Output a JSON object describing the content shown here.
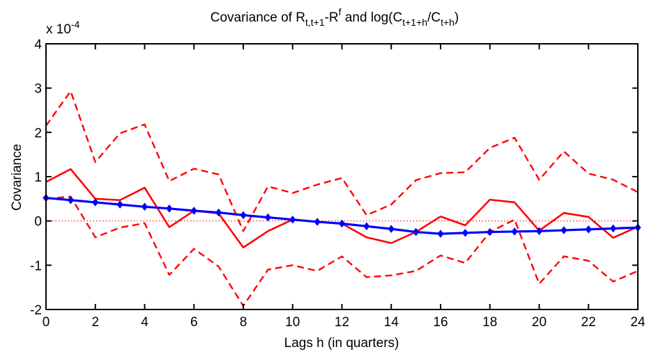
{
  "chart_data": {
    "type": "line",
    "title": {
      "prefix": "Covariance of R",
      "sub1": "t,t+1",
      "mid1": "-R",
      "sup1": "f",
      "mid2": " and log(C",
      "sub2": "t+1+h",
      "mid3": "/C",
      "sub3": "t+h",
      "suffix": ")"
    },
    "xlabel": "Lags h (in quarters)",
    "ylabel": "Covariance",
    "exponent": {
      "base": "x 10",
      "power": "-4"
    },
    "xlim": [
      0,
      24
    ],
    "ylim": [
      -2,
      4
    ],
    "xticks": [
      0,
      2,
      4,
      6,
      8,
      10,
      12,
      14,
      16,
      18,
      20,
      22,
      24
    ],
    "yticks": [
      -2,
      -1,
      0,
      1,
      2,
      3,
      4
    ],
    "x": [
      0,
      1,
      2,
      3,
      4,
      5,
      6,
      7,
      8,
      9,
      10,
      11,
      12,
      13,
      14,
      15,
      16,
      17,
      18,
      19,
      20,
      21,
      22,
      23,
      24
    ],
    "series": [
      {
        "style": "solid",
        "color": "#ff0000",
        "values": [
          0.88,
          1.17,
          0.5,
          0.47,
          0.75,
          -0.14,
          0.23,
          0.17,
          -0.6,
          -0.23,
          0.03,
          -0.02,
          -0.06,
          -0.37,
          -0.5,
          -0.25,
          0.1,
          -0.1,
          0.48,
          0.42,
          -0.22,
          0.18,
          0.09,
          -0.38,
          -0.13
        ]
      },
      {
        "style": "dashed",
        "color": "#ff0000",
        "values": [
          2.15,
          2.93,
          1.33,
          1.98,
          2.18,
          0.9,
          1.18,
          1.05,
          -0.23,
          0.78,
          0.63,
          0.82,
          0.97,
          0.13,
          0.37,
          0.92,
          1.08,
          1.1,
          1.65,
          1.88,
          0.93,
          1.57,
          1.07,
          0.93,
          0.65
        ]
      },
      {
        "style": "dashed",
        "color": "#ff0000",
        "values": [
          0.5,
          0.55,
          -0.37,
          -0.15,
          -0.05,
          -1.22,
          -0.63,
          -1.03,
          -1.92,
          -1.1,
          -1.0,
          -1.13,
          -0.8,
          -1.27,
          -1.23,
          -1.13,
          -0.78,
          -0.95,
          -0.25,
          0.03,
          -1.42,
          -0.8,
          -0.9,
          -1.37,
          -1.13
        ]
      },
      {
        "style": "solid-markers",
        "color": "#0000ff",
        "values": [
          0.52,
          0.47,
          0.42,
          0.37,
          0.32,
          0.28,
          0.23,
          0.19,
          0.13,
          0.08,
          0.03,
          -0.02,
          -0.06,
          -0.12,
          -0.18,
          -0.25,
          -0.29,
          -0.27,
          -0.25,
          -0.24,
          -0.23,
          -0.21,
          -0.19,
          -0.17,
          -0.15
        ]
      }
    ],
    "reference_line": {
      "y": 0,
      "style": "dotted",
      "color": "#ff0000"
    },
    "grid": false
  }
}
